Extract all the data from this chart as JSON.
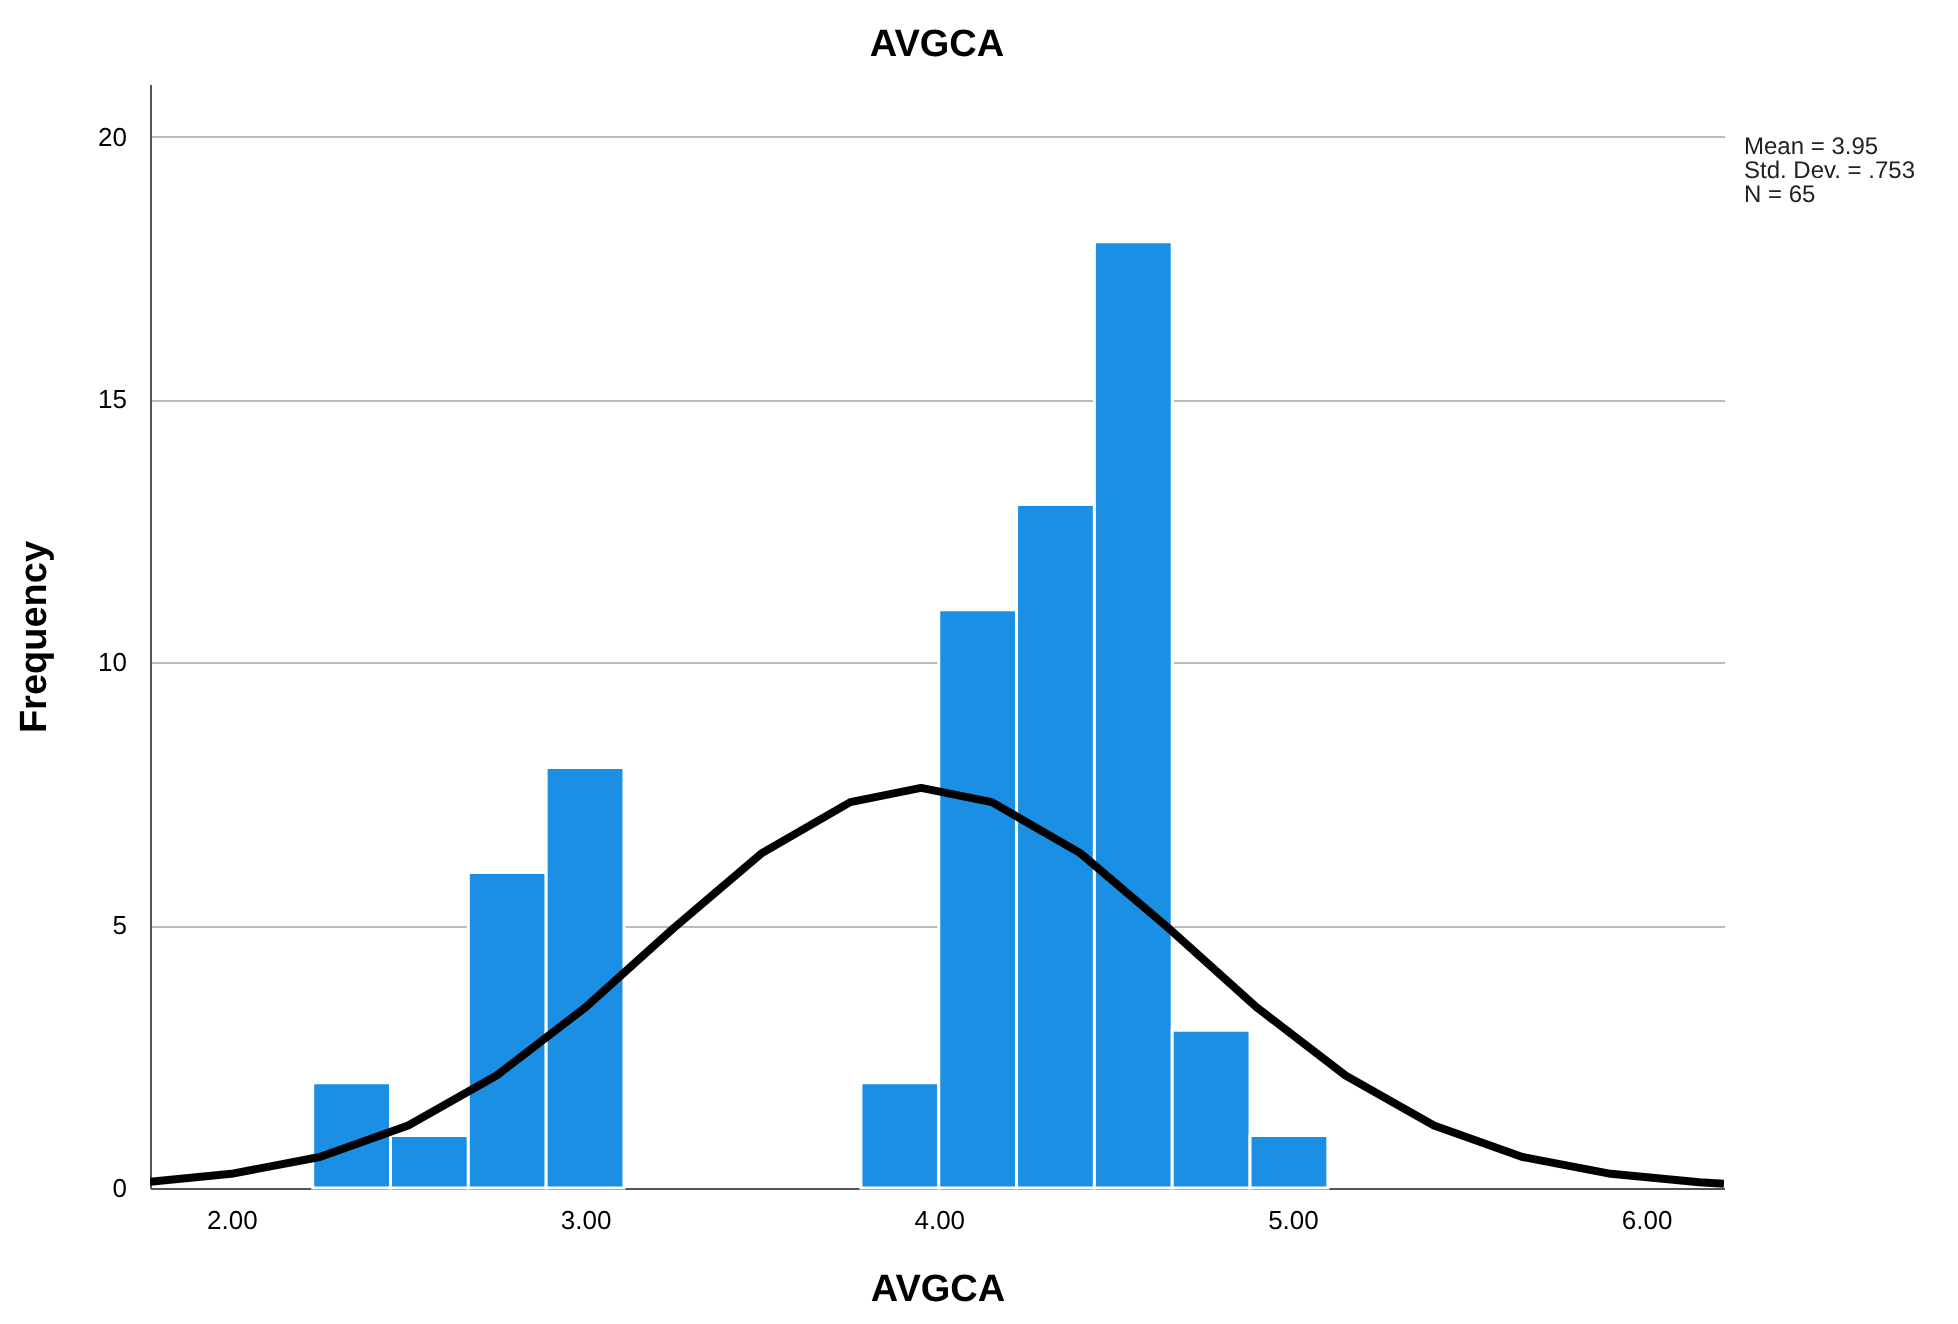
{
  "chart_data": {
    "type": "histogram",
    "title": "AVGCA",
    "xlabel": "AVGCA",
    "ylabel": "Frequency",
    "bins": [
      2.23,
      2.45,
      2.67,
      2.89,
      3.11,
      3.78,
      4.0,
      4.22,
      4.44,
      4.66,
      4.88,
      5.1
    ],
    "values": [
      2,
      1,
      6,
      8,
      0,
      2,
      11,
      13,
      18,
      3,
      1
    ],
    "color": "#1a8fe3",
    "series": [
      {
        "type": "line",
        "color": "#000000",
        "x": [
          1.77,
          2.0,
          2.25,
          2.5,
          2.75,
          3.0,
          3.25,
          3.5,
          3.75,
          3.95,
          4.15,
          4.4,
          4.65,
          4.9,
          5.15,
          5.4,
          5.65,
          5.9,
          6.15,
          6.22
        ],
        "values": [
          0.12,
          0.27,
          0.59,
          1.19,
          2.14,
          3.43,
          4.94,
          6.37,
          7.34,
          7.61,
          7.34,
          6.37,
          4.94,
          3.43,
          2.14,
          1.19,
          0.59,
          0.27,
          0.11,
          0.08
        ]
      }
    ],
    "xlim": [
      1.77,
      6.22
    ],
    "xticks": [
      {
        "value": 2,
        "label": "2.00"
      },
      {
        "value": 3,
        "label": "3.00"
      },
      {
        "value": 4,
        "label": "4.00"
      },
      {
        "value": 5,
        "label": "5.00"
      },
      {
        "value": 6,
        "label": "6.00"
      }
    ],
    "ylim": [
      0,
      21
    ],
    "yticks": [
      0,
      5,
      10,
      15,
      20
    ],
    "grid": "y",
    "annotations": [
      "Mean = 3.95",
      "Std. Dev. = .753",
      "N = 65"
    ]
  }
}
